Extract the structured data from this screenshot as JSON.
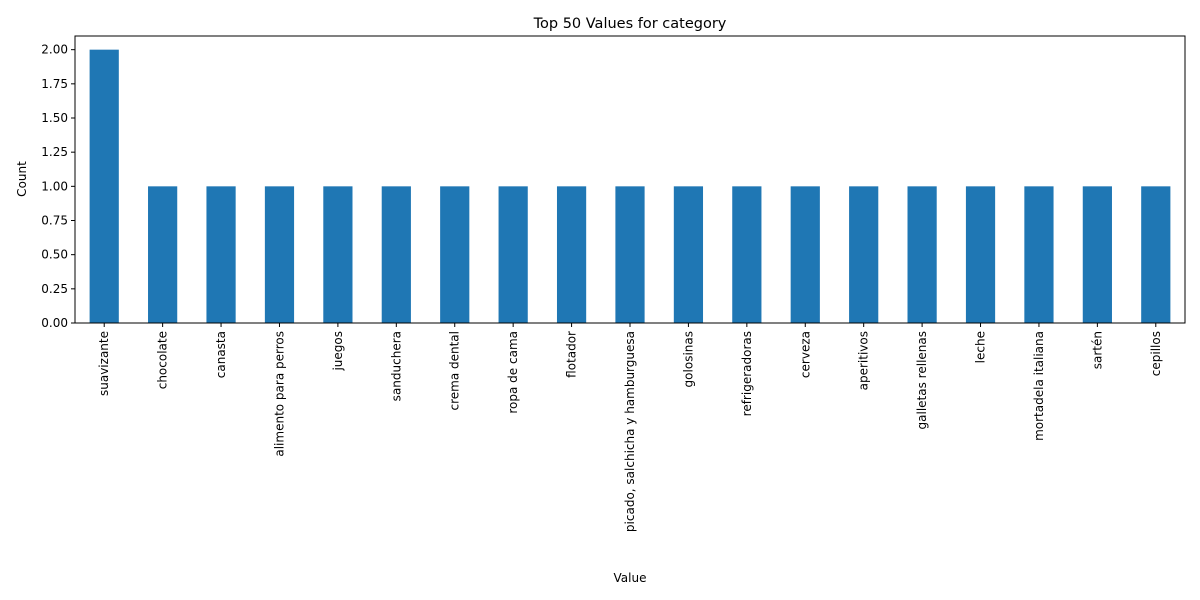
{
  "chart_data": {
    "type": "bar",
    "title": "Top 50 Values for category",
    "xlabel": "Value",
    "ylabel": "Count",
    "ylim": [
      0,
      2.1
    ],
    "yticks": [
      "0.00",
      "0.25",
      "0.50",
      "0.75",
      "1.00",
      "1.25",
      "1.50",
      "1.75",
      "2.00"
    ],
    "categories": [
      "suavizante",
      "chocolate",
      "canasta",
      "alimento para perros",
      "juegos",
      "sanduchera",
      "crema dental",
      "ropa de cama",
      "flotador",
      "picado, salchicha y hamburguesa",
      "golosinas",
      "refrigeradoras",
      "cerveza",
      "aperitivos",
      "galletas rellenas",
      "leche",
      "mortadela italiana",
      "sartén",
      "cepillos"
    ],
    "values": [
      2,
      1,
      1,
      1,
      1,
      1,
      1,
      1,
      1,
      1,
      1,
      1,
      1,
      1,
      1,
      1,
      1,
      1,
      1
    ],
    "bar_color": "#1f77b4",
    "grid": false,
    "legend": "none"
  }
}
